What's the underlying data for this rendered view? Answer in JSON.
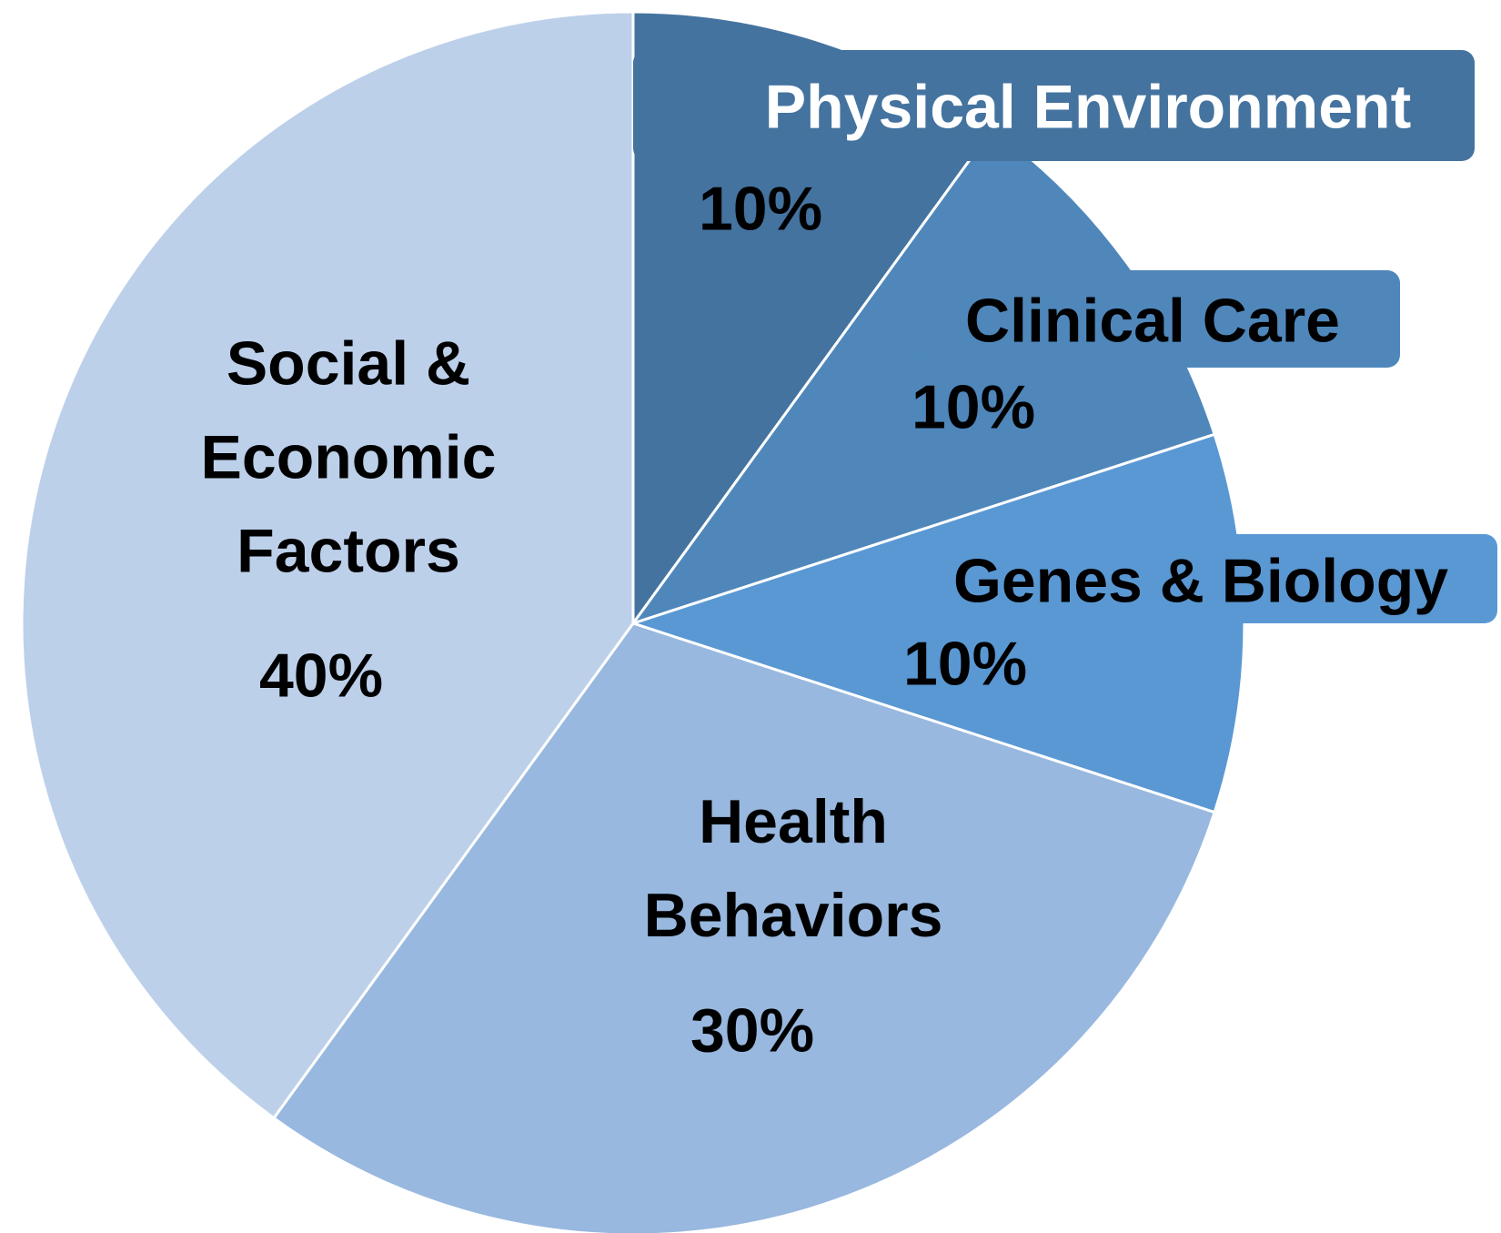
{
  "chart_data": {
    "type": "pie",
    "categories": [
      "Physical Environment",
      "Clinical Care",
      "Genes & Biology",
      "Health Behaviors",
      "Social & Economic Factors"
    ],
    "values": [
      10,
      10,
      10,
      30,
      40
    ],
    "value_labels": [
      "10%",
      "10%",
      "10%",
      "30%",
      "40%"
    ],
    "colors": [
      "#44739f",
      "#4f87bb",
      "#5a98d4",
      "#98b8df",
      "#bdd0ea"
    ]
  }
}
